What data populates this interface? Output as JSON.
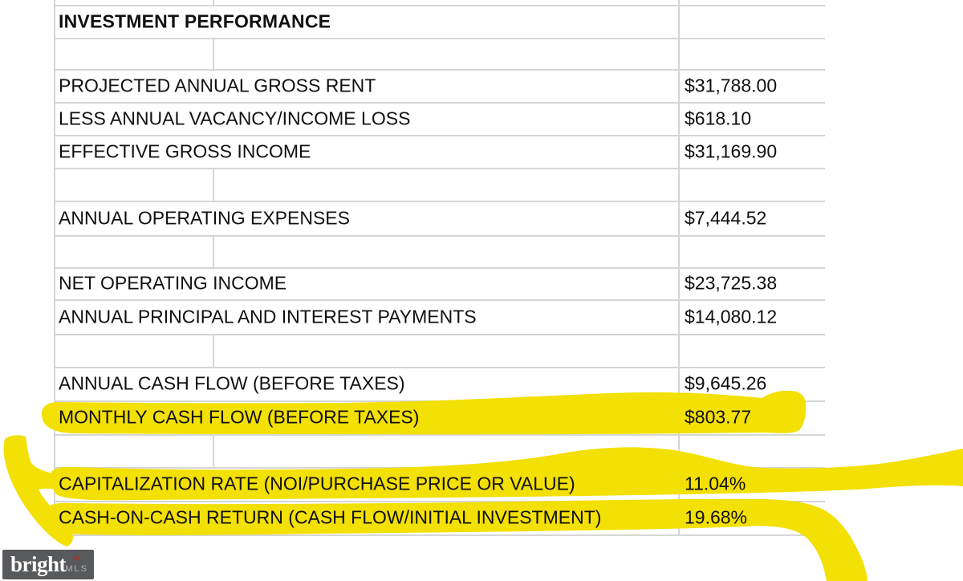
{
  "colors": {
    "highlight": "#F3E005",
    "gridline": "#D6D6D6",
    "ink": "#101010",
    "watermark_bg": "#58595B",
    "watermark_mls": "#B3B3B5",
    "watermark_dot": "#9E3A2B"
  },
  "table": {
    "title": "INVESTMENT PERFORMANCE",
    "rows": [
      {
        "label": "INVESTMENT PERFORMANCE",
        "value": "",
        "bold": true,
        "highlighted": false
      },
      {
        "label": "",
        "value": "",
        "bold": false,
        "highlighted": false
      },
      {
        "label": "PROJECTED ANNUAL GROSS RENT",
        "value": "$31,788.00",
        "bold": false,
        "highlighted": false
      },
      {
        "label": "LESS ANNUAL VACANCY/INCOME LOSS",
        "value": "$618.10",
        "bold": false,
        "highlighted": false
      },
      {
        "label": "EFFECTIVE GROSS INCOME",
        "value": "$31,169.90",
        "bold": false,
        "highlighted": false
      },
      {
        "label": "",
        "value": "",
        "bold": false,
        "highlighted": false
      },
      {
        "label": "ANNUAL OPERATING EXPENSES",
        "value": "$7,444.52",
        "bold": false,
        "highlighted": false
      },
      {
        "label": "",
        "value": "",
        "bold": false,
        "highlighted": false
      },
      {
        "label": "NET OPERATING INCOME",
        "value": "$23,725.38",
        "bold": false,
        "highlighted": false
      },
      {
        "label": "ANNUAL PRINCIPAL AND INTEREST PAYMENTS",
        "value": "$14,080.12",
        "bold": false,
        "highlighted": false
      },
      {
        "label": "",
        "value": "",
        "bold": false,
        "highlighted": false
      },
      {
        "label": "ANNUAL CASH FLOW (BEFORE TAXES)",
        "value": "$9,645.26",
        "bold": false,
        "highlighted": false
      },
      {
        "label": "MONTHLY CASH FLOW (BEFORE TAXES)",
        "value": "$803.77",
        "bold": false,
        "highlighted": true
      },
      {
        "label": "",
        "value": "",
        "bold": false,
        "highlighted": false
      },
      {
        "label": "CAPITALIZATION RATE (NOI/PURCHASE PRICE OR VALUE)",
        "value": "11.04%",
        "bold": false,
        "highlighted": true
      },
      {
        "label": "CASH-ON-CASH RETURN (CASH FLOW/INITIAL INVESTMENT)",
        "value": "19.68%",
        "bold": false,
        "highlighted": true
      }
    ]
  },
  "watermark": {
    "brand": "bright",
    "suffix": "MLS"
  }
}
